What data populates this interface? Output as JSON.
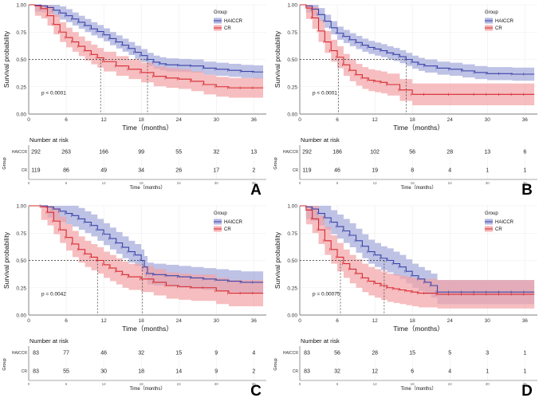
{
  "figure": {
    "common": {
      "title_x": "Time（months）",
      "title_y": "Survival probability",
      "legend_title": "Group",
      "risk_title": "Number at risk",
      "risk_axis_label": "Group",
      "risk_x_label": "Time（months）",
      "x_ticks": [
        "0",
        "6",
        "12",
        "18",
        "24",
        "30",
        "36"
      ],
      "y_ticks": [
        "0.00",
        "0.25",
        "0.50",
        "0.75",
        "1.00"
      ],
      "colors": {
        "haiccr_line": "#3b44a8",
        "haiccr_band": "#a3a8da",
        "cr_line": "#d62a32",
        "cr_band": "#f2a2a5",
        "grid": "#ececec",
        "ref_line": "#333333"
      }
    }
  },
  "chart_data": [
    {
      "type": "line",
      "panel_label": "A",
      "title": "",
      "xlabel": "Time（months）",
      "ylabel": "Survival probability",
      "xlim": [
        0,
        38
      ],
      "ylim": [
        0,
        1
      ],
      "p_value": "p < 0.0001",
      "legend": {
        "title": "Group",
        "entries": [
          "HAICCR",
          "CR"
        ],
        "position": "top-right"
      },
      "median": [
        19,
        11.5
      ],
      "series": [
        {
          "name": "HAICCR",
          "times": [
            0,
            1,
            2,
            3,
            4,
            5,
            6,
            7,
            8,
            9,
            10,
            11,
            12,
            13,
            14,
            15,
            16,
            17,
            18,
            19,
            20,
            21,
            22,
            24,
            26,
            28,
            30,
            32,
            34,
            36,
            37.5
          ],
          "survival": [
            1,
            0.997,
            0.99,
            0.975,
            0.95,
            0.925,
            0.9,
            0.87,
            0.84,
            0.81,
            0.78,
            0.755,
            0.725,
            0.69,
            0.66,
            0.63,
            0.6,
            0.565,
            0.535,
            0.5,
            0.475,
            0.46,
            0.45,
            0.445,
            0.44,
            0.42,
            0.41,
            0.4,
            0.39,
            0.385,
            0.385
          ],
          "band": 0.06
        },
        {
          "name": "CR",
          "times": [
            0,
            1,
            2,
            3,
            4,
            5,
            6,
            7,
            8,
            9,
            10,
            11,
            12,
            14,
            16,
            18,
            20,
            22,
            24,
            26,
            28,
            30,
            32,
            34,
            36,
            37.5
          ],
          "survival": [
            1,
            0.99,
            0.965,
            0.9,
            0.82,
            0.75,
            0.7,
            0.66,
            0.62,
            0.58,
            0.545,
            0.515,
            0.48,
            0.44,
            0.41,
            0.38,
            0.345,
            0.33,
            0.32,
            0.3,
            0.27,
            0.25,
            0.24,
            0.24,
            0.24,
            0.24
          ],
          "band": 0.09
        }
      ],
      "risk_table": {
        "times": [
          0,
          6,
          12,
          18,
          24,
          30,
          36
        ],
        "rows": [
          {
            "group": "HAICCR",
            "counts": [
              "292",
              "263",
              "166",
              "99",
              "55",
              "32",
              "13"
            ]
          },
          {
            "group": "CR",
            "counts": [
              "119",
              "86",
              "49",
              "34",
              "26",
              "17",
              "2"
            ]
          }
        ]
      }
    },
    {
      "type": "line",
      "panel_label": "B",
      "title": "",
      "xlabel": "Time（months）",
      "ylabel": "Survival probability",
      "xlim": [
        0,
        38
      ],
      "ylim": [
        0,
        1
      ],
      "p_value": "p < 0.0001",
      "legend": {
        "title": "Group",
        "entries": [
          "HAICCR",
          "CR"
        ],
        "position": "top-right"
      },
      "median": [
        17,
        6.2
      ],
      "series": [
        {
          "name": "HAICCR",
          "times": [
            0,
            1,
            2,
            3,
            4,
            5,
            6,
            7,
            8,
            9,
            10,
            11,
            12,
            13,
            14,
            15,
            16,
            17,
            18,
            19,
            20,
            22,
            24,
            26,
            28,
            30,
            32,
            34,
            36,
            37.5
          ],
          "survival": [
            1,
            0.99,
            0.96,
            0.91,
            0.85,
            0.79,
            0.74,
            0.71,
            0.68,
            0.655,
            0.63,
            0.61,
            0.595,
            0.58,
            0.56,
            0.545,
            0.525,
            0.5,
            0.475,
            0.455,
            0.44,
            0.42,
            0.41,
            0.395,
            0.38,
            0.37,
            0.37,
            0.365,
            0.365,
            0.365
          ],
          "band": 0.06
        },
        {
          "name": "CR",
          "times": [
            0,
            1,
            2,
            3,
            4,
            5,
            6,
            7,
            8,
            9,
            10,
            11,
            12,
            13,
            14,
            16,
            18,
            20,
            24,
            28,
            30,
            32,
            34,
            36,
            37.5
          ],
          "survival": [
            1,
            0.97,
            0.88,
            0.76,
            0.66,
            0.58,
            0.52,
            0.45,
            0.4,
            0.36,
            0.33,
            0.31,
            0.3,
            0.29,
            0.27,
            0.22,
            0.18,
            0.18,
            0.18,
            0.18,
            0.18,
            0.18,
            0.18,
            0.18,
            0.18
          ],
          "band": 0.1
        }
      ],
      "risk_table": {
        "times": [
          0,
          6,
          12,
          18,
          24,
          30,
          36
        ],
        "rows": [
          {
            "group": "HAICCR",
            "counts": [
              "292",
              "186",
              "102",
              "56",
              "28",
              "13",
              "6"
            ]
          },
          {
            "group": "CR",
            "counts": [
              "119",
              "46",
              "19",
              "8",
              "4",
              "1",
              "1"
            ]
          }
        ]
      }
    },
    {
      "type": "line",
      "panel_label": "C",
      "title": "",
      "xlabel": "Time（months）",
      "ylabel": "Survival probability",
      "xlim": [
        0,
        38
      ],
      "ylim": [
        0,
        1
      ],
      "p_value": "p = 0.0042",
      "legend": {
        "title": "Group",
        "entries": [
          "HAICCR",
          "CR"
        ],
        "position": "top-right"
      },
      "median": [
        18.2,
        11
      ],
      "series": [
        {
          "name": "HAICCR",
          "times": [
            0,
            1,
            2,
            3,
            4,
            5,
            6,
            7,
            8,
            9,
            10,
            11,
            12,
            13,
            14,
            15,
            16,
            17,
            18,
            18.5,
            19,
            20,
            22,
            24,
            26,
            28,
            30,
            32,
            34,
            36,
            37.5
          ],
          "survival": [
            1,
            1,
            1,
            0.99,
            0.97,
            0.95,
            0.93,
            0.91,
            0.88,
            0.85,
            0.82,
            0.78,
            0.74,
            0.7,
            0.66,
            0.62,
            0.58,
            0.55,
            0.5,
            0.44,
            0.38,
            0.37,
            0.36,
            0.35,
            0.34,
            0.33,
            0.32,
            0.31,
            0.3,
            0.3,
            0.3
          ],
          "band": 0.1
        },
        {
          "name": "CR",
          "times": [
            0,
            1,
            2,
            3,
            4,
            5,
            6,
            7,
            8,
            9,
            10,
            11,
            12,
            13,
            14,
            15,
            16,
            18,
            20,
            22,
            24,
            26,
            28,
            30,
            32,
            34,
            36,
            37.5
          ],
          "survival": [
            1,
            1,
            0.99,
            0.94,
            0.86,
            0.78,
            0.71,
            0.65,
            0.6,
            0.56,
            0.53,
            0.5,
            0.46,
            0.43,
            0.4,
            0.37,
            0.35,
            0.33,
            0.3,
            0.27,
            0.26,
            0.25,
            0.25,
            0.22,
            0.2,
            0.2,
            0.2,
            0.2
          ],
          "band": 0.12
        }
      ],
      "risk_table": {
        "times": [
          0,
          6,
          12,
          18,
          24,
          30,
          36
        ],
        "rows": [
          {
            "group": "HAICCR",
            "counts": [
              "83",
              "77",
              "46",
              "32",
              "15",
              "9",
              "4"
            ]
          },
          {
            "group": "CR",
            "counts": [
              "83",
              "55",
              "30",
              "18",
              "14",
              "9",
              "2"
            ]
          }
        ]
      }
    },
    {
      "type": "line",
      "panel_label": "D",
      "title": "",
      "xlabel": "Time（months）",
      "ylabel": "Survival probability",
      "xlim": [
        0,
        38
      ],
      "ylim": [
        0,
        1
      ],
      "p_value": "p = 0.00075",
      "legend": {
        "title": "Group",
        "entries": [
          "HAICCR",
          "CR"
        ],
        "position": "top-right"
      },
      "median": [
        13.5,
        6.5
      ],
      "series": [
        {
          "name": "HAICCR",
          "times": [
            0,
            1,
            2,
            3,
            4,
            5,
            6,
            7,
            8,
            9,
            10,
            11,
            12,
            13,
            14,
            15,
            16,
            17,
            18,
            19,
            20,
            21,
            22,
            24,
            26,
            28,
            30,
            32,
            34,
            36,
            37.5
          ],
          "survival": [
            1,
            0.99,
            0.97,
            0.93,
            0.89,
            0.85,
            0.81,
            0.77,
            0.73,
            0.68,
            0.63,
            0.58,
            0.55,
            0.52,
            0.5,
            0.47,
            0.44,
            0.4,
            0.36,
            0.33,
            0.3,
            0.27,
            0.21,
            0.21,
            0.21,
            0.21,
            0.21,
            0.21,
            0.21,
            0.21,
            0.21
          ],
          "band": 0.11
        },
        {
          "name": "CR",
          "times": [
            0,
            1,
            2,
            3,
            4,
            5,
            6,
            7,
            8,
            9,
            10,
            11,
            12,
            13,
            14,
            15,
            16,
            17,
            18,
            19,
            20,
            22,
            24,
            26,
            28,
            30,
            32,
            34,
            36,
            37.5
          ],
          "survival": [
            1,
            0.96,
            0.88,
            0.78,
            0.68,
            0.6,
            0.53,
            0.47,
            0.42,
            0.38,
            0.34,
            0.31,
            0.29,
            0.27,
            0.25,
            0.24,
            0.23,
            0.22,
            0.21,
            0.2,
            0.2,
            0.19,
            0.19,
            0.19,
            0.19,
            0.19,
            0.19,
            0.19,
            0.19,
            0.19
          ],
          "band": 0.13
        }
      ],
      "risk_table": {
        "times": [
          0,
          6,
          12,
          18,
          24,
          30,
          36
        ],
        "rows": [
          {
            "group": "HAICCR",
            "counts": [
              "83",
              "56",
              "28",
              "15",
              "5",
              "3",
              "1"
            ]
          },
          {
            "group": "CR",
            "counts": [
              "83",
              "32",
              "12",
              "6",
              "4",
              "1",
              "1"
            ]
          }
        ]
      }
    }
  ]
}
